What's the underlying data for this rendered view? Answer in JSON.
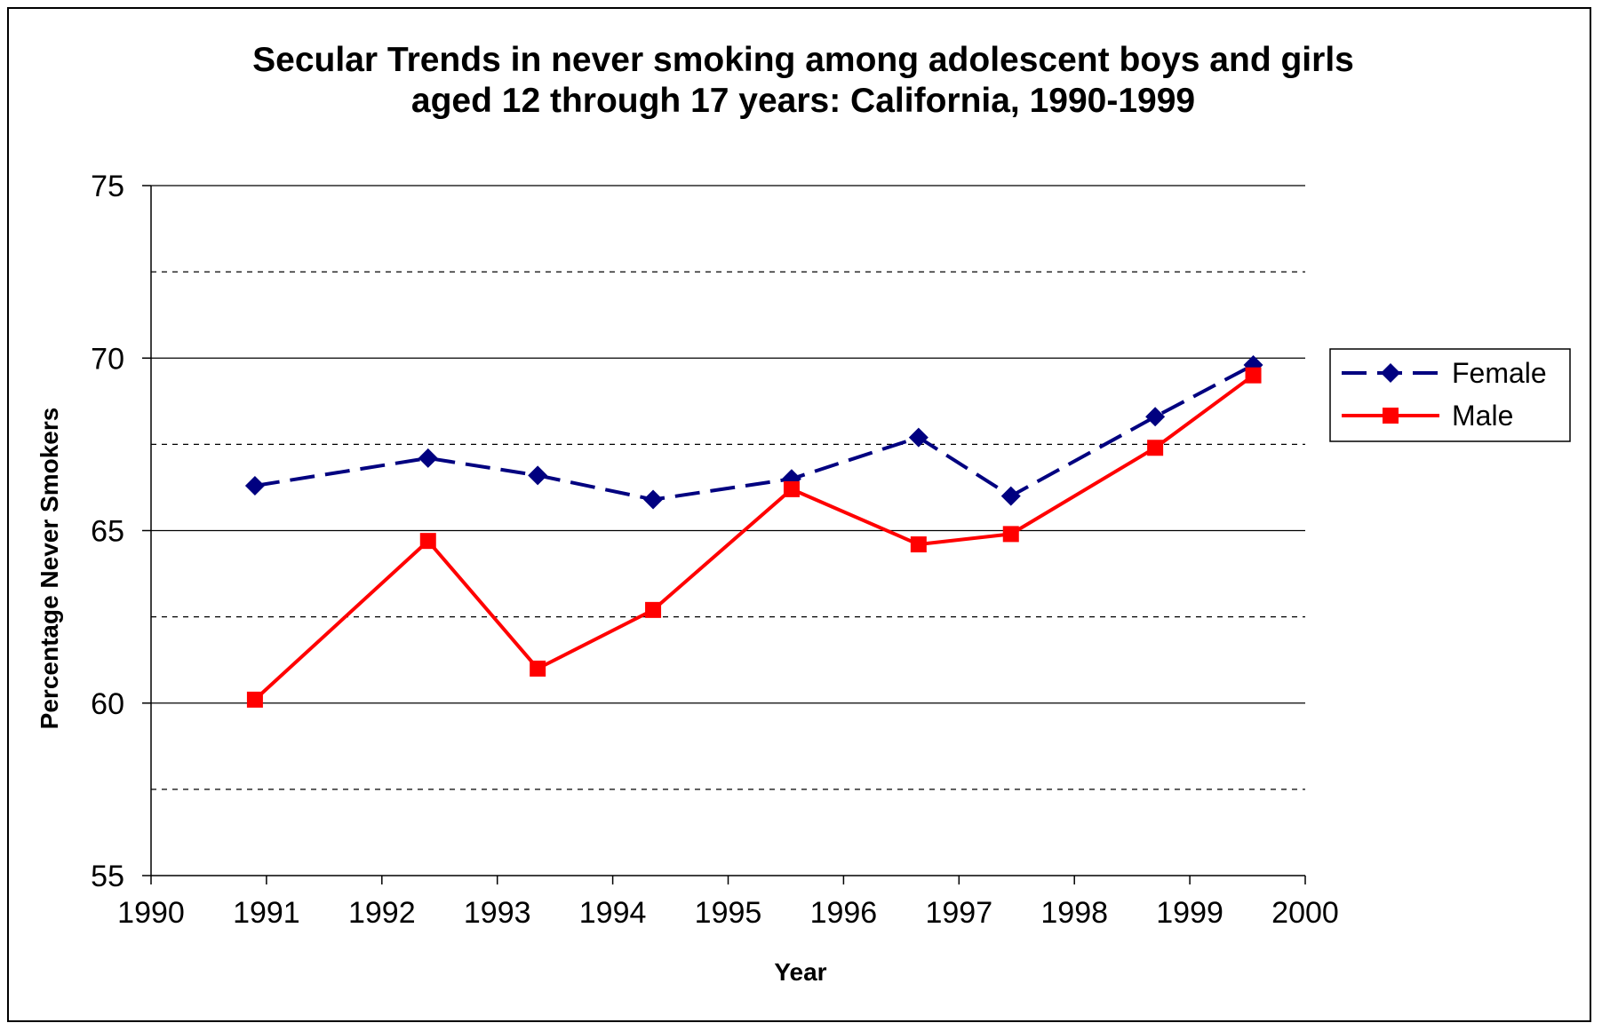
{
  "chart_data": {
    "type": "line",
    "title": [
      "Secular Trends in never smoking among adolescent boys and girls",
      "aged 12 through 17 years: California, 1990-1999"
    ],
    "xlabel": "Year",
    "ylabel": "Percentage Never Smokers",
    "xlim": [
      1990,
      2000
    ],
    "ylim": [
      55,
      75
    ],
    "x_ticks": [
      1990,
      1991,
      1992,
      1993,
      1994,
      1995,
      1996,
      1997,
      1998,
      1999,
      2000
    ],
    "y_ticks": [
      55,
      60,
      65,
      70,
      75
    ],
    "grid": {
      "major_solid": true,
      "minor_dashed": [
        57.5,
        62.5,
        67.5,
        72.5
      ]
    },
    "legend_position": "right",
    "series": [
      {
        "name": "Female",
        "color": "#000080",
        "line_style": "dashed",
        "marker": "diamond",
        "x": [
          1990.9,
          1992.4,
          1993.35,
          1994.35,
          1995.55,
          1996.65,
          1997.45,
          1998.7,
          1999.55
        ],
        "y": [
          66.3,
          67.1,
          66.6,
          65.9,
          66.5,
          67.7,
          66.0,
          68.3,
          69.8
        ]
      },
      {
        "name": "Male",
        "color": "#ff0000",
        "line_style": "solid",
        "marker": "square",
        "x": [
          1990.9,
          1992.4,
          1993.35,
          1994.35,
          1995.55,
          1996.65,
          1997.45,
          1998.7,
          1999.55
        ],
        "y": [
          60.1,
          64.7,
          61.0,
          62.7,
          66.2,
          64.6,
          64.9,
          67.4,
          69.5
        ]
      }
    ]
  }
}
